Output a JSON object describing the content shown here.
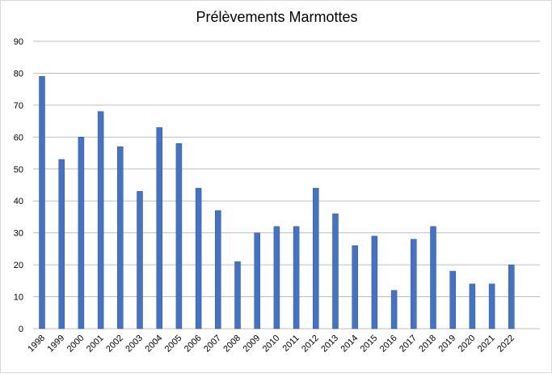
{
  "chart_data": {
    "type": "bar",
    "title": "Prélèvements Marmottes",
    "xlabel": "",
    "ylabel": "",
    "categories": [
      "1998",
      "1999",
      "2000",
      "2001",
      "2002",
      "2003",
      "2004",
      "2005",
      "2006",
      "2007",
      "2008",
      "2009",
      "2010",
      "2011",
      "2012",
      "2013",
      "2014",
      "2015",
      "2016",
      "2017",
      "2018",
      "2019",
      "2020",
      "2021",
      "2022"
    ],
    "values": [
      79,
      53,
      60,
      68,
      57,
      43,
      63,
      58,
      44,
      37,
      21,
      30,
      32,
      32,
      44,
      36,
      26,
      29,
      12,
      28,
      32,
      18,
      14,
      14,
      20
    ],
    "ylim": [
      0,
      90
    ],
    "yticks": [
      0,
      10,
      20,
      30,
      40,
      50,
      60,
      70,
      80,
      90
    ],
    "grid": true,
    "legend": "none",
    "colors": {
      "bar_fill": "#4472c4",
      "bar_stroke": "#2f5597",
      "grid": "#bfbfbf"
    }
  }
}
